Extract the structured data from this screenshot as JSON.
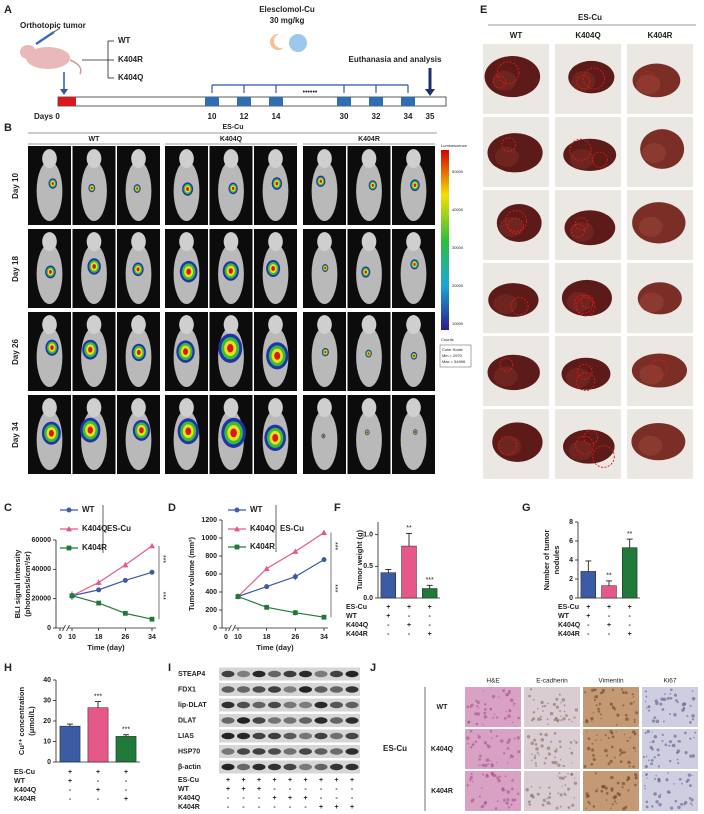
{
  "panel_labels": [
    "A",
    "B",
    "C",
    "D",
    "E",
    "F",
    "G",
    "H",
    "I",
    "J"
  ],
  "timeline": {
    "model": "Orthotopic tumor",
    "groups": [
      "WT",
      "K404R",
      "K404Q"
    ],
    "drug": "Elesclomol-Cu",
    "dose": "30 mg/kg",
    "endpoint": "Euthanasia and analysis",
    "start": "Days 0",
    "dosing_days": [
      10,
      12,
      14,
      30,
      32,
      34
    ],
    "continuation": "••••••",
    "end_day": 35
  },
  "bli": {
    "header": "ES-Cu",
    "groups": [
      "WT",
      "K404Q",
      "K404R"
    ],
    "rows": [
      "Day 10",
      "Day 18",
      "Day 26",
      "Day 34"
    ],
    "colorbar": {
      "title": "Luminescence",
      "ticks": [
        50000,
        40000,
        30000,
        20000,
        10000
      ],
      "unit": "Counts",
      "scale_title": "Color Scale",
      "min": "Min = 2970",
      "max": "Max = 54996"
    }
  },
  "liver": {
    "header": "ES-Cu",
    "groups": [
      "WT",
      "K404Q",
      "K404R"
    ]
  },
  "western_blot": {
    "proteins": [
      "STEAP4",
      "FDX1",
      "lip-DLAT",
      "DLAT",
      "LIAS",
      "HSP70",
      "β-actin"
    ],
    "treatments": [
      {
        "label": "ES-Cu",
        "signs": [
          "+",
          "+",
          "+",
          "+",
          "+",
          "+",
          "+",
          "+",
          "+"
        ]
      },
      {
        "label": "WT",
        "signs": [
          "+",
          "+",
          "+",
          "-",
          "-",
          "-",
          "-",
          "-",
          "-"
        ]
      },
      {
        "label": "K404Q",
        "signs": [
          "-",
          "-",
          "-",
          "+",
          "+",
          "+",
          "-",
          "-",
          "-"
        ]
      },
      {
        "label": "K404R",
        "signs": [
          "-",
          "-",
          "-",
          "-",
          "-",
          "-",
          "+",
          "+",
          "+"
        ]
      }
    ]
  },
  "ihc": {
    "header": "ES-Cu",
    "stains": [
      "H&E",
      "E-cadherin",
      "Vimentin",
      "Ki67"
    ],
    "groups": [
      "WT",
      "K404Q",
      "K404R"
    ]
  },
  "chart_data": [
    {
      "type": "line",
      "x_label": "Time (day)",
      "y_label": [
        "BLI signal intensity",
        "(photons/s/cm²/sr)"
      ],
      "legend_group": "ES-Cu",
      "x": [
        10,
        18,
        26,
        34
      ],
      "xlim": [
        0,
        34
      ],
      "xticks": [
        0,
        10,
        18,
        26,
        34
      ],
      "axis_break": true,
      "ylim": [
        0,
        60000
      ],
      "yticks": [
        0,
        20000,
        40000,
        60000
      ],
      "series": [
        {
          "name": "WT",
          "color": "#3b5ba5",
          "marker": "circle",
          "values": [
            22000,
            26000,
            32500,
            38000
          ],
          "errors": [
            1500,
            1200,
            1500,
            800
          ]
        },
        {
          "name": "K404Q",
          "color": "#e6588a",
          "marker": "triangle",
          "values": [
            22000,
            31000,
            43000,
            56000
          ],
          "errors": [
            2500,
            2000,
            1800,
            1000
          ]
        },
        {
          "name": "K404R",
          "color": "#1f7a3a",
          "marker": "square",
          "values": [
            22000,
            17000,
            10000,
            6000
          ],
          "errors": [
            3000,
            800,
            600,
            500
          ]
        }
      ],
      "annotations": [
        "***",
        "***"
      ]
    },
    {
      "type": "line",
      "x_label": "Time (day)",
      "y_label": [
        "Tumor volume (mm³)"
      ],
      "legend_group": "ES-Cu",
      "x": [
        10,
        18,
        26,
        34
      ],
      "xlim": [
        0,
        34
      ],
      "xticks": [
        0,
        10,
        18,
        26,
        34
      ],
      "axis_break": true,
      "ylim": [
        0,
        1200
      ],
      "yticks": [
        0,
        200,
        400,
        600,
        800,
        1000,
        1200
      ],
      "series": [
        {
          "name": "WT",
          "color": "#3b5ba5",
          "marker": "circle",
          "values": [
            350,
            460,
            570,
            760
          ],
          "errors": [
            30,
            25,
            40,
            20
          ]
        },
        {
          "name": "K404Q",
          "color": "#e6588a",
          "marker": "triangle",
          "values": [
            350,
            660,
            850,
            1060
          ],
          "errors": [
            30,
            20,
            25,
            30
          ]
        },
        {
          "name": "K404R",
          "color": "#1f7a3a",
          "marker": "square",
          "values": [
            350,
            230,
            170,
            120
          ],
          "errors": [
            30,
            25,
            30,
            25
          ]
        }
      ],
      "annotations": [
        "***",
        "***"
      ]
    },
    {
      "type": "bar",
      "y_label": [
        "Tumor weight (g)"
      ],
      "values": [
        0.4,
        0.82,
        0.15
      ],
      "errors": [
        0.05,
        0.2,
        0.05
      ],
      "colors": [
        "#3b5ba5",
        "#e6588a",
        "#1f7a3a"
      ],
      "ylim": [
        0,
        1.2
      ],
      "yticks": [
        {
          "value": 0,
          "label": "0.0"
        },
        0.5,
        {
          "value": 1,
          "label": "1.0"
        }
      ],
      "significance": [
        null,
        "**",
        "***"
      ],
      "treatments": [
        {
          "label": "ES-Cu",
          "signs": [
            "+",
            "+",
            "+"
          ]
        },
        {
          "label": "WT",
          "signs": [
            "+",
            "-",
            "-"
          ]
        },
        {
          "label": "K404Q",
          "signs": [
            "-",
            "+",
            "-"
          ]
        },
        {
          "label": "K404R",
          "signs": [
            "-",
            "-",
            "+"
          ]
        }
      ]
    },
    {
      "type": "bar",
      "y_label": [
        "Number of tumor",
        "nodules"
      ],
      "values": [
        2.8,
        1.3,
        5.3
      ],
      "errors": [
        1.1,
        0.5,
        0.9
      ],
      "colors": [
        "#3b5ba5",
        "#e6588a",
        "#1f7a3a"
      ],
      "ylim": [
        0,
        8
      ],
      "yticks": [
        0,
        2,
        4,
        6,
        8
      ],
      "significance": [
        null,
        "**",
        "**"
      ],
      "treatments": [
        {
          "label": "ES-Cu",
          "signs": [
            "+",
            "+",
            "+"
          ]
        },
        {
          "label": "WT",
          "signs": [
            "+",
            "-",
            "-"
          ]
        },
        {
          "label": "K404Q",
          "signs": [
            "-",
            "+",
            "-"
          ]
        },
        {
          "label": "K404R",
          "signs": [
            "-",
            "-",
            "+"
          ]
        }
      ]
    },
    {
      "type": "bar",
      "y_label": [
        "Cu²⁺ concentration",
        "(μmol/L)"
      ],
      "values": [
        17.5,
        26.5,
        12.5
      ],
      "errors": [
        1,
        3,
        0.8
      ],
      "colors": [
        "#3b5ba5",
        "#e6588a",
        "#1f7a3a"
      ],
      "ylim": [
        0,
        40
      ],
      "yticks": [
        0,
        10,
        20,
        30,
        40
      ],
      "significance": [
        null,
        "***",
        "***"
      ],
      "treatments": [
        {
          "label": "ES-Cu",
          "signs": [
            "+",
            "+",
            "+"
          ]
        },
        {
          "label": "WT",
          "signs": [
            "+",
            "-",
            "-"
          ]
        },
        {
          "label": "K404Q",
          "signs": [
            "-",
            "+",
            "-"
          ]
        },
        {
          "label": "K404R",
          "signs": [
            "-",
            "-",
            "+"
          ]
        }
      ]
    }
  ]
}
